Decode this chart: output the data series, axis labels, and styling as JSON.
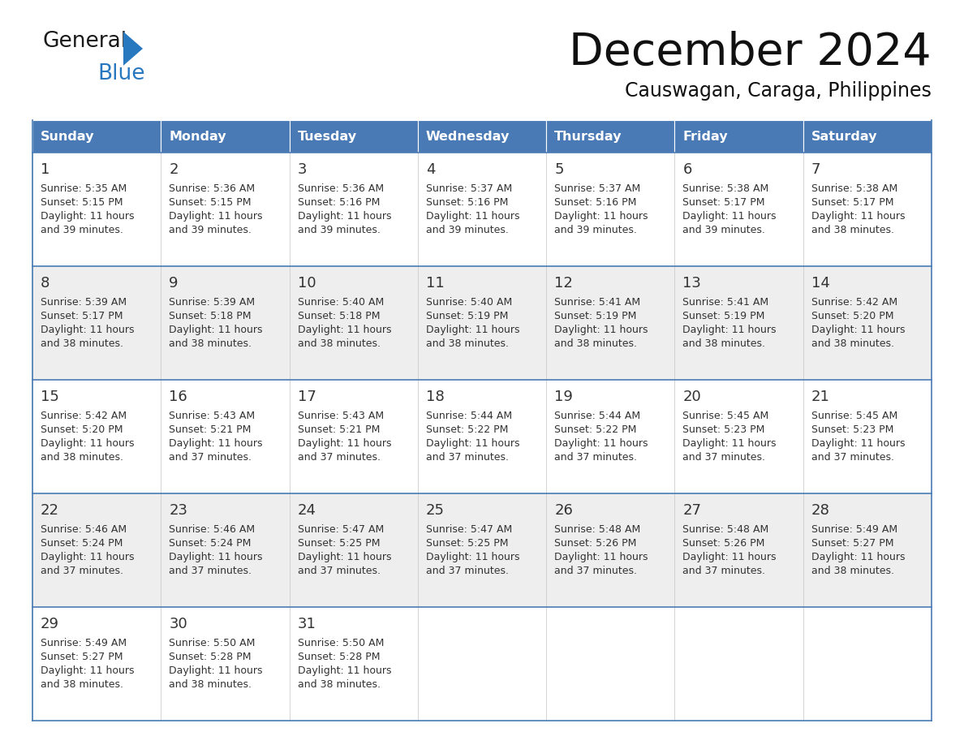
{
  "title": "December 2024",
  "subtitle": "Causwagan, Caraga, Philippines",
  "header_color": "#4a7ab5",
  "header_text_color": "#ffffff",
  "cell_bg_white": "#ffffff",
  "cell_bg_gray": "#eeeeee",
  "border_color": "#4a7ab5",
  "text_color": "#333333",
  "day_headers": [
    "Sunday",
    "Monday",
    "Tuesday",
    "Wednesday",
    "Thursday",
    "Friday",
    "Saturday"
  ],
  "weeks": [
    [
      {
        "day": "1",
        "sunrise": "5:35 AM",
        "sunset": "5:15 PM",
        "daylight_h": "11 hours",
        "daylight_m": "and 39 minutes."
      },
      {
        "day": "2",
        "sunrise": "5:36 AM",
        "sunset": "5:15 PM",
        "daylight_h": "11 hours",
        "daylight_m": "and 39 minutes."
      },
      {
        "day": "3",
        "sunrise": "5:36 AM",
        "sunset": "5:16 PM",
        "daylight_h": "11 hours",
        "daylight_m": "and 39 minutes."
      },
      {
        "day": "4",
        "sunrise": "5:37 AM",
        "sunset": "5:16 PM",
        "daylight_h": "11 hours",
        "daylight_m": "and 39 minutes."
      },
      {
        "day": "5",
        "sunrise": "5:37 AM",
        "sunset": "5:16 PM",
        "daylight_h": "11 hours",
        "daylight_m": "and 39 minutes."
      },
      {
        "day": "6",
        "sunrise": "5:38 AM",
        "sunset": "5:17 PM",
        "daylight_h": "11 hours",
        "daylight_m": "and 39 minutes."
      },
      {
        "day": "7",
        "sunrise": "5:38 AM",
        "sunset": "5:17 PM",
        "daylight_h": "11 hours",
        "daylight_m": "and 38 minutes."
      }
    ],
    [
      {
        "day": "8",
        "sunrise": "5:39 AM",
        "sunset": "5:17 PM",
        "daylight_h": "11 hours",
        "daylight_m": "and 38 minutes."
      },
      {
        "day": "9",
        "sunrise": "5:39 AM",
        "sunset": "5:18 PM",
        "daylight_h": "11 hours",
        "daylight_m": "and 38 minutes."
      },
      {
        "day": "10",
        "sunrise": "5:40 AM",
        "sunset": "5:18 PM",
        "daylight_h": "11 hours",
        "daylight_m": "and 38 minutes."
      },
      {
        "day": "11",
        "sunrise": "5:40 AM",
        "sunset": "5:19 PM",
        "daylight_h": "11 hours",
        "daylight_m": "and 38 minutes."
      },
      {
        "day": "12",
        "sunrise": "5:41 AM",
        "sunset": "5:19 PM",
        "daylight_h": "11 hours",
        "daylight_m": "and 38 minutes."
      },
      {
        "day": "13",
        "sunrise": "5:41 AM",
        "sunset": "5:19 PM",
        "daylight_h": "11 hours",
        "daylight_m": "and 38 minutes."
      },
      {
        "day": "14",
        "sunrise": "5:42 AM",
        "sunset": "5:20 PM",
        "daylight_h": "11 hours",
        "daylight_m": "and 38 minutes."
      }
    ],
    [
      {
        "day": "15",
        "sunrise": "5:42 AM",
        "sunset": "5:20 PM",
        "daylight_h": "11 hours",
        "daylight_m": "and 38 minutes."
      },
      {
        "day": "16",
        "sunrise": "5:43 AM",
        "sunset": "5:21 PM",
        "daylight_h": "11 hours",
        "daylight_m": "and 37 minutes."
      },
      {
        "day": "17",
        "sunrise": "5:43 AM",
        "sunset": "5:21 PM",
        "daylight_h": "11 hours",
        "daylight_m": "and 37 minutes."
      },
      {
        "day": "18",
        "sunrise": "5:44 AM",
        "sunset": "5:22 PM",
        "daylight_h": "11 hours",
        "daylight_m": "and 37 minutes."
      },
      {
        "day": "19",
        "sunrise": "5:44 AM",
        "sunset": "5:22 PM",
        "daylight_h": "11 hours",
        "daylight_m": "and 37 minutes."
      },
      {
        "day": "20",
        "sunrise": "5:45 AM",
        "sunset": "5:23 PM",
        "daylight_h": "11 hours",
        "daylight_m": "and 37 minutes."
      },
      {
        "day": "21",
        "sunrise": "5:45 AM",
        "sunset": "5:23 PM",
        "daylight_h": "11 hours",
        "daylight_m": "and 37 minutes."
      }
    ],
    [
      {
        "day": "22",
        "sunrise": "5:46 AM",
        "sunset": "5:24 PM",
        "daylight_h": "11 hours",
        "daylight_m": "and 37 minutes."
      },
      {
        "day": "23",
        "sunrise": "5:46 AM",
        "sunset": "5:24 PM",
        "daylight_h": "11 hours",
        "daylight_m": "and 37 minutes."
      },
      {
        "day": "24",
        "sunrise": "5:47 AM",
        "sunset": "5:25 PM",
        "daylight_h": "11 hours",
        "daylight_m": "and 37 minutes."
      },
      {
        "day": "25",
        "sunrise": "5:47 AM",
        "sunset": "5:25 PM",
        "daylight_h": "11 hours",
        "daylight_m": "and 37 minutes."
      },
      {
        "day": "26",
        "sunrise": "5:48 AM",
        "sunset": "5:26 PM",
        "daylight_h": "11 hours",
        "daylight_m": "and 37 minutes."
      },
      {
        "day": "27",
        "sunrise": "5:48 AM",
        "sunset": "5:26 PM",
        "daylight_h": "11 hours",
        "daylight_m": "and 37 minutes."
      },
      {
        "day": "28",
        "sunrise": "5:49 AM",
        "sunset": "5:27 PM",
        "daylight_h": "11 hours",
        "daylight_m": "and 38 minutes."
      }
    ],
    [
      {
        "day": "29",
        "sunrise": "5:49 AM",
        "sunset": "5:27 PM",
        "daylight_h": "11 hours",
        "daylight_m": "and 38 minutes."
      },
      {
        "day": "30",
        "sunrise": "5:50 AM",
        "sunset": "5:28 PM",
        "daylight_h": "11 hours",
        "daylight_m": "and 38 minutes."
      },
      {
        "day": "31",
        "sunrise": "5:50 AM",
        "sunset": "5:28 PM",
        "daylight_h": "11 hours",
        "daylight_m": "and 38 minutes."
      },
      null,
      null,
      null,
      null
    ]
  ],
  "logo_general_color": "#1a1a1a",
  "logo_blue_color": "#2878c0",
  "logo_triangle_color": "#2878c0"
}
